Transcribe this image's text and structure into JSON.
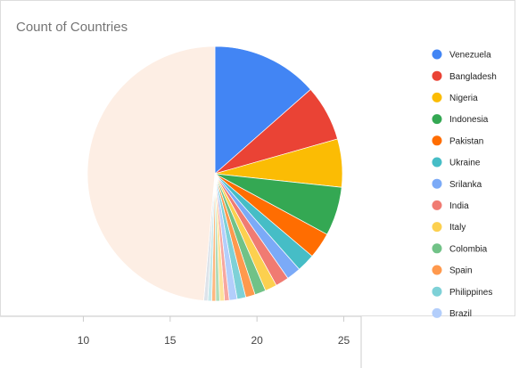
{
  "chart_data": [
    {
      "type": "pie",
      "title": "Count of Countries",
      "categories": [
        "Venezuela",
        "Bangladesh",
        "Nigeria",
        "Indonesia",
        "Pakistan",
        "Ukraine",
        "Srilanka",
        "India",
        "Italy",
        "Colombia",
        "Spain",
        "Philippines",
        "Brazil",
        null,
        null,
        null,
        null,
        null,
        null,
        null
      ],
      "values": [
        13.5,
        7.1,
        6.1,
        6.2,
        3.3,
        2.3,
        1.8,
        1.7,
        1.5,
        1.4,
        1.2,
        1.1,
        1.0,
        0.6,
        0.6,
        0.5,
        0.5,
        0.5,
        0.5,
        48.6
      ],
      "colors": [
        "#4285f4",
        "#ea4335",
        "#fbbc04",
        "#34a853",
        "#ff6d01",
        "#46bdc6",
        "#7baaf7",
        "#f07b72",
        "#fcd04f",
        "#71c287",
        "#ff994d",
        "#7ed1d7",
        "#b3cefb",
        "#f7a7a0",
        "#fde49b",
        "#aedcba",
        "#ffb87f",
        "#c8e9ec",
        "#dde3ea",
        "#fdeee4"
      ]
    },
    {
      "type": "axis",
      "xlim": [
        5.2,
        26
      ],
      "xticks": [
        10,
        15,
        20,
        25
      ]
    }
  ]
}
